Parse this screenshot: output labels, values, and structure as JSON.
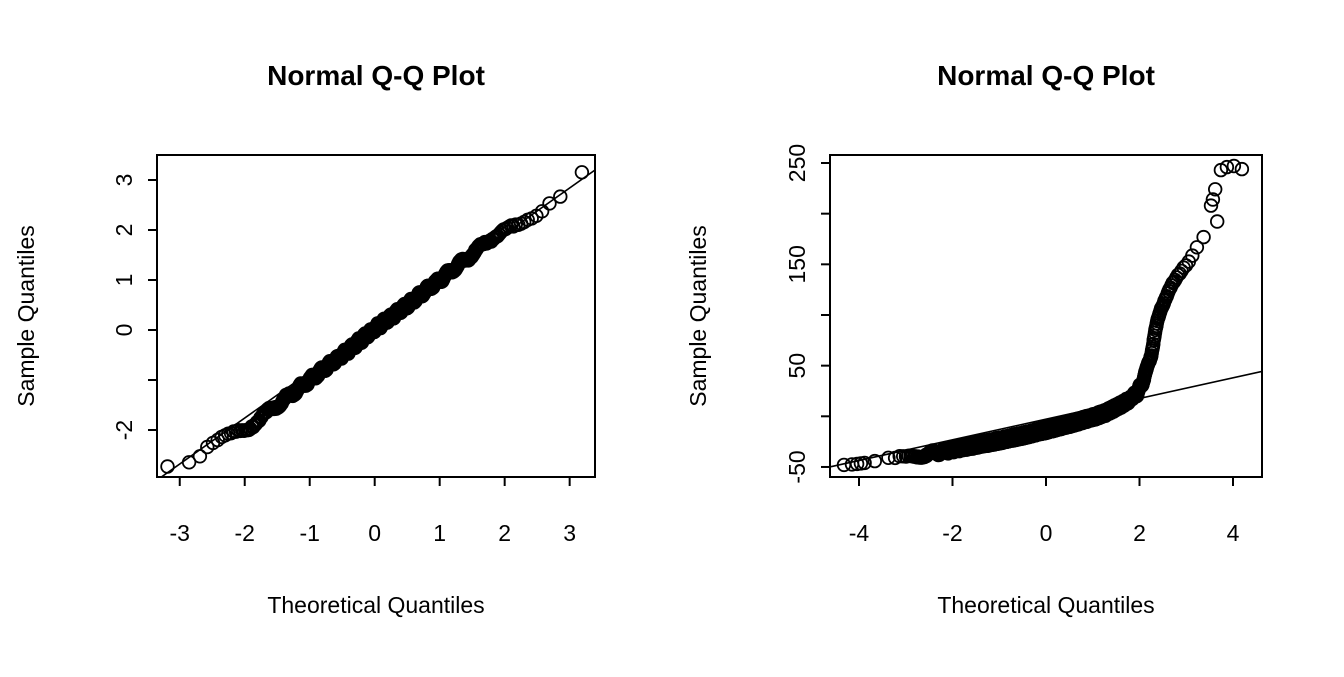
{
  "page": {
    "background": "#ffffff",
    "foreground": "#000000"
  },
  "chart_data": [
    {
      "type": "scatter",
      "title": "Normal Q-Q Plot",
      "xlabel": "Theoretical Quantiles",
      "ylabel": "Sample Quantiles",
      "xlim": [
        -3.35,
        3.39
      ],
      "ylim": [
        -2.94,
        3.5
      ],
      "grid": false,
      "legend": null,
      "point_style": "open-circle",
      "xticks": [
        {
          "v": -3,
          "label": "-3"
        },
        {
          "v": -2,
          "label": "-2"
        },
        {
          "v": -1,
          "label": "-1"
        },
        {
          "v": 0,
          "label": "0"
        },
        {
          "v": 1,
          "label": "1"
        },
        {
          "v": 2,
          "label": "2"
        },
        {
          "v": 3,
          "label": "3"
        }
      ],
      "yticks": [
        {
          "v": -2,
          "label": "-2"
        },
        {
          "v": -1,
          "label": ""
        },
        {
          "v": 0,
          "label": "0"
        },
        {
          "v": 1,
          "label": "1"
        },
        {
          "v": 2,
          "label": "2"
        },
        {
          "v": 3,
          "label": "3"
        }
      ],
      "n_points": 700,
      "jitter": 0.07,
      "anchors": [
        [
          -3.19,
          -2.72
        ],
        [
          -2.86,
          -2.68
        ],
        [
          -2.7,
          -2.55
        ],
        [
          -2.55,
          -2.35
        ],
        [
          -2.4,
          -2.22
        ],
        [
          -2.25,
          -2.12
        ],
        [
          -2.1,
          -2.03
        ],
        [
          -1.95,
          -1.96
        ],
        [
          -1.5,
          -1.5
        ],
        [
          -1.0,
          -1.0
        ],
        [
          -0.5,
          -0.5
        ],
        [
          0.0,
          0.02
        ],
        [
          0.5,
          0.5
        ],
        [
          1.0,
          1.0
        ],
        [
          1.5,
          1.52
        ],
        [
          1.8,
          1.84
        ],
        [
          2.0,
          2.02
        ],
        [
          2.2,
          2.06
        ],
        [
          2.35,
          2.16
        ],
        [
          2.5,
          2.28
        ],
        [
          2.66,
          2.5
        ],
        [
          2.86,
          2.7
        ],
        [
          3.19,
          3.2
        ]
      ],
      "outliers": [],
      "ref_line": {
        "slope": 0.92,
        "intercept": 0.08,
        "x_range": [
          -3.32,
          3.39
        ]
      }
    },
    {
      "type": "scatter",
      "title": "Normal Q-Q Plot",
      "xlabel": "Theoretical Quantiles",
      "ylabel": "Sample Quantiles",
      "xlim": [
        -4.62,
        4.62
      ],
      "ylim": [
        -59.9,
        257.9
      ],
      "grid": false,
      "legend": null,
      "point_style": "open-circle",
      "xticks": [
        {
          "v": -4,
          "label": "-4"
        },
        {
          "v": -2,
          "label": "-2"
        },
        {
          "v": 0,
          "label": "0"
        },
        {
          "v": 2,
          "label": "2"
        },
        {
          "v": 4,
          "label": "4"
        }
      ],
      "yticks": [
        {
          "v": -50,
          "label": "-50"
        },
        {
          "v": 0,
          "label": ""
        },
        {
          "v": 50,
          "label": "50"
        },
        {
          "v": 100,
          "label": ""
        },
        {
          "v": 150,
          "label": "150"
        },
        {
          "v": 200,
          "label": ""
        },
        {
          "v": 250,
          "label": "250"
        }
      ],
      "n_points": 4000,
      "jitter": 3,
      "anchors": [
        [
          -3.66,
          -45.5
        ],
        [
          -3.4,
          -44.0
        ],
        [
          -3.0,
          -41.0
        ],
        [
          -2.5,
          -37.0
        ],
        [
          -2.0,
          -33.0
        ],
        [
          -1.5,
          -28.5
        ],
        [
          -1.0,
          -24.0
        ],
        [
          -0.5,
          -19.0
        ],
        [
          0.0,
          -13.5
        ],
        [
          0.5,
          -7.5
        ],
        [
          1.0,
          -1.0
        ],
        [
          1.3,
          4.0
        ],
        [
          1.6,
          11.0
        ],
        [
          1.8,
          17.0
        ],
        [
          1.95,
          23.0
        ],
        [
          2.05,
          32.0
        ],
        [
          2.15,
          45.0
        ],
        [
          2.25,
          62.0
        ],
        [
          2.35,
          85.0
        ],
        [
          2.45,
          105.0
        ],
        [
          2.55,
          118.0
        ],
        [
          2.7,
          130.0
        ],
        [
          2.9,
          142.0
        ],
        [
          3.1,
          155.0
        ],
        [
          3.3,
          172.0
        ],
        [
          3.45,
          182.0
        ],
        [
          3.55,
          188.0
        ],
        [
          3.66,
          192.0
        ]
      ],
      "outliers": [
        [
          -4.32,
          -48.0
        ],
        [
          -4.15,
          -47.5
        ],
        [
          -4.04,
          -47.0
        ],
        [
          -3.96,
          -46.5
        ],
        [
          -3.88,
          -46.0
        ],
        [
          3.53,
          208.0
        ],
        [
          3.57,
          214.0
        ],
        [
          3.62,
          224.0
        ],
        [
          3.74,
          243.0
        ],
        [
          3.87,
          246.0
        ],
        [
          4.02,
          247.0
        ],
        [
          4.19,
          244.0
        ]
      ],
      "ref_line": {
        "slope": 10.2,
        "intercept": -2.8,
        "x_range": [
          -4.6,
          4.62
        ]
      }
    }
  ]
}
